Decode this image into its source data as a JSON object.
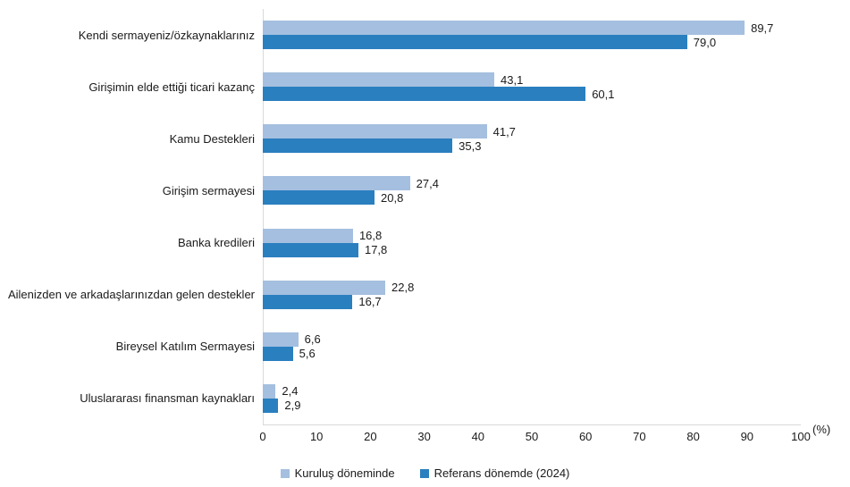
{
  "chart_data": {
    "type": "bar",
    "orientation": "horizontal",
    "title": "",
    "categories": [
      "Kendi sermayeniz/özkaynaklarınız",
      "Girişimin elde ettiği ticari kazanç",
      "Kamu Destekleri",
      "Girişim sermayesi",
      "Banka kredileri",
      "Ailenizden ve arkadaşlarınızdan gelen destekler",
      "Bireysel Katılım Sermayesi",
      "Uluslararası finansman kaynakları"
    ],
    "series": [
      {
        "name": "Kuruluş döneminde",
        "color": "#a4bfdf",
        "values": [
          89.7,
          43.1,
          41.7,
          27.4,
          16.8,
          22.8,
          6.6,
          2.4
        ],
        "labels": [
          "89,7",
          "43,1",
          "41,7",
          "27,4",
          "16,8",
          "22,8",
          "6,6",
          "2,4"
        ]
      },
      {
        "name": "Referans dönemde (2024)",
        "color": "#2a7fbf",
        "values": [
          79.0,
          60.1,
          35.3,
          20.8,
          17.8,
          16.7,
          5.6,
          2.9
        ],
        "labels": [
          "79,0",
          "60,1",
          "35,3",
          "20,8",
          "17,8",
          "16,7",
          "5,6",
          "2,9"
        ]
      }
    ],
    "x_axis": {
      "min": 0,
      "max": 100,
      "tick_step": 10,
      "ticks": [
        "0",
        "10",
        "20",
        "30",
        "40",
        "50",
        "60",
        "70",
        "80",
        "90",
        "100"
      ],
      "unit_label": "(%)"
    },
    "legend": {
      "position": "bottom",
      "items": [
        "Kuruluş döneminde",
        "Referans dönemde (2024)"
      ]
    },
    "style": {
      "axis_line_color": "#d9d9d9",
      "text_color": "#1a1a1a",
      "background": "#ffffff"
    },
    "grid": false
  }
}
